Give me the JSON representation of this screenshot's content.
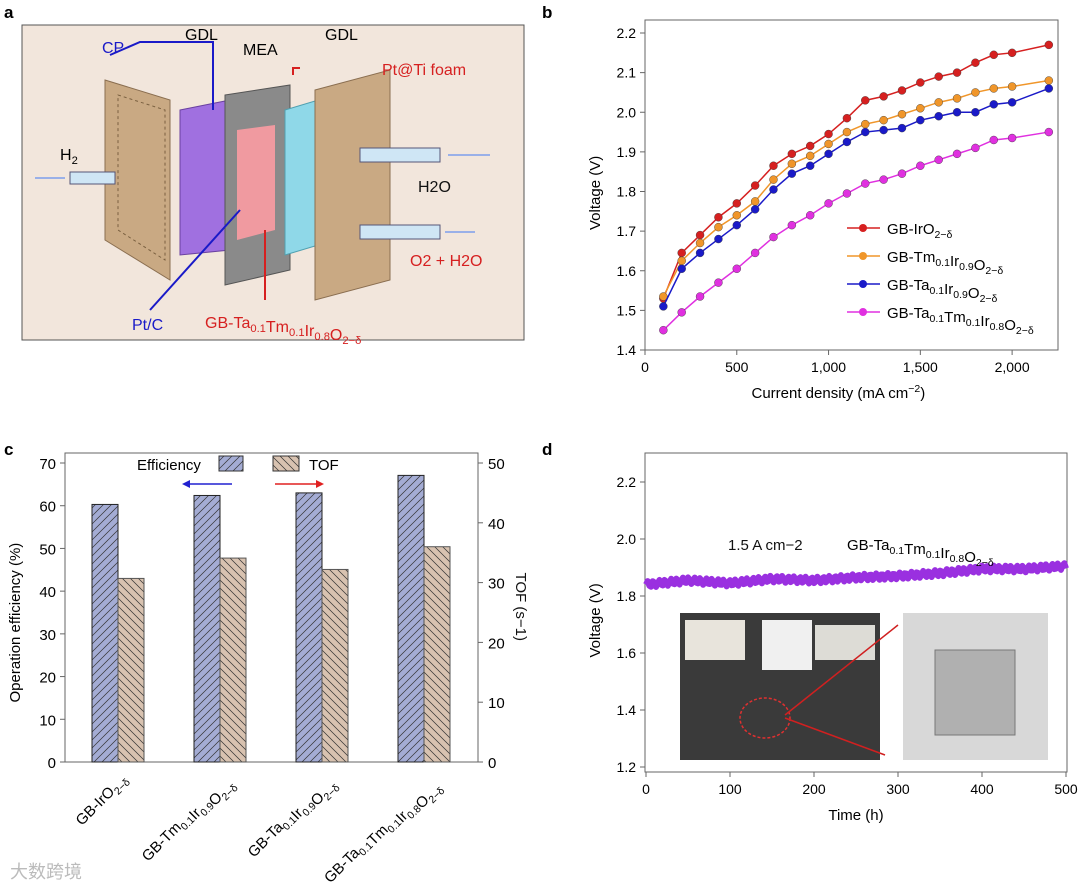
{
  "panel_labels": [
    "a",
    "b",
    "c",
    "d"
  ],
  "diagram_a": {
    "labels": {
      "cp": "CP",
      "gdl_left": "GDL",
      "mea": "MEA",
      "gdl_right": "GDL",
      "pt_ti": "Pt@Ti foam",
      "h2": "H2",
      "h2o": "H2O",
      "o2_h2o": "O2 + H2O",
      "ptc": "Pt/C",
      "catalyst": "GB-Ta0.1Tm0.1Ir0.8O2−δ"
    }
  },
  "chart_data": [
    {
      "type": "line",
      "panel": "b",
      "xlabel": "Current density (mA cm−2)",
      "ylabel": "Voltage (V)",
      "xlim": [
        0,
        2250
      ],
      "ylim": [
        1.4,
        2.2
      ],
      "xticks": [
        "0",
        "500",
        "1,000",
        "1,500",
        "2,000"
      ],
      "yticks": [
        "1.4",
        "1.5",
        "1.6",
        "1.7",
        "1.8",
        "1.9",
        "2.0",
        "2.1",
        "2.2"
      ],
      "x": [
        100,
        200,
        300,
        400,
        500,
        600,
        700,
        800,
        900,
        1000,
        1100,
        1200,
        1300,
        1400,
        1500,
        1600,
        1700,
        1800,
        1900,
        2000,
        2200
      ],
      "legend": "bottom-right",
      "series": [
        {
          "name": "GB-IrO2−δ",
          "color": "#d62020",
          "values": [
            1.53,
            1.645,
            1.69,
            1.735,
            1.77,
            1.815,
            1.865,
            1.895,
            1.915,
            1.945,
            1.985,
            2.03,
            2.04,
            2.055,
            2.075,
            2.09,
            2.1,
            2.125,
            2.145,
            2.15,
            2.17
          ]
        },
        {
          "name": "GB-Tm0.1Ir0.9O2−δ",
          "color": "#f0962a",
          "values": [
            1.535,
            1.625,
            1.67,
            1.71,
            1.74,
            1.775,
            1.83,
            1.87,
            1.89,
            1.92,
            1.95,
            1.97,
            1.98,
            1.995,
            2.01,
            2.025,
            2.035,
            2.05,
            2.06,
            2.065,
            2.08
          ]
        },
        {
          "name": "GB-Ta0.1Ir0.9O2−δ",
          "color": "#1a1ac8",
          "values": [
            1.51,
            1.605,
            1.645,
            1.68,
            1.715,
            1.755,
            1.805,
            1.845,
            1.865,
            1.895,
            1.925,
            1.95,
            1.955,
            1.96,
            1.98,
            1.99,
            2.0,
            2.0,
            2.02,
            2.025,
            2.06
          ]
        },
        {
          "name": "GB-Ta0.1Tm0.1Ir0.8O2−δ",
          "color": "#e030e0",
          "values": [
            1.45,
            1.495,
            1.535,
            1.57,
            1.605,
            1.645,
            1.685,
            1.715,
            1.74,
            1.77,
            1.795,
            1.82,
            1.83,
            1.845,
            1.865,
            1.88,
            1.895,
            1.91,
            1.93,
            1.935,
            1.95
          ]
        }
      ]
    },
    {
      "type": "bar",
      "panel": "c",
      "ylabel": "Operation efficiency (%)",
      "y2label": "TOF (s−1)",
      "ylim": [
        0,
        70
      ],
      "y2lim": [
        0,
        50
      ],
      "yticks": [
        "0",
        "10",
        "20",
        "30",
        "40",
        "50",
        "60",
        "70"
      ],
      "y2ticks": [
        "0",
        "10",
        "20",
        "30",
        "40",
        "50"
      ],
      "categories": [
        "GB-IrO2−δ",
        "GB-Tm0.1Ir0.9O2−δ",
        "GB-Ta0.1Ir0.9O2−δ",
        "GB-Ta0.1Tm0.1Ir0.8O2−δ"
      ],
      "legend": "top-center",
      "series": [
        {
          "name": "Efficiency",
          "color": "#a4acd4",
          "axis": "left",
          "values": [
            60.3,
            62.4,
            63.0,
            67.1
          ]
        },
        {
          "name": "TOF",
          "color": "#d8c2b0",
          "axis": "right",
          "values": [
            30.7,
            34.1,
            32.2,
            36.0
          ]
        }
      ]
    },
    {
      "type": "line",
      "panel": "d",
      "xlabel": "Time (h)",
      "ylabel": "Voltage (V)",
      "xlim": [
        0,
        500
      ],
      "ylim": [
        1.2,
        2.3
      ],
      "xticks": [
        "0",
        "100",
        "200",
        "300",
        "400",
        "500"
      ],
      "yticks": [
        "1.2",
        "1.4",
        "1.6",
        "1.8",
        "2.0",
        "2.2"
      ],
      "annotation_current": "1.5 A cm−2",
      "annotation_sample": "GB-Ta0.1Tm0.1Ir0.8O2−δ",
      "series": [
        {
          "name": "GB-Ta0.1Tm0.1Ir0.8O2−δ",
          "color": "#9a30e0",
          "x": [
            0,
            50,
            100,
            150,
            200,
            250,
            300,
            350,
            400,
            450,
            500
          ],
          "values": [
            1.84,
            1.855,
            1.845,
            1.86,
            1.855,
            1.865,
            1.87,
            1.88,
            1.895,
            1.895,
            1.905
          ]
        }
      ]
    }
  ],
  "watermark": "大数跨境"
}
